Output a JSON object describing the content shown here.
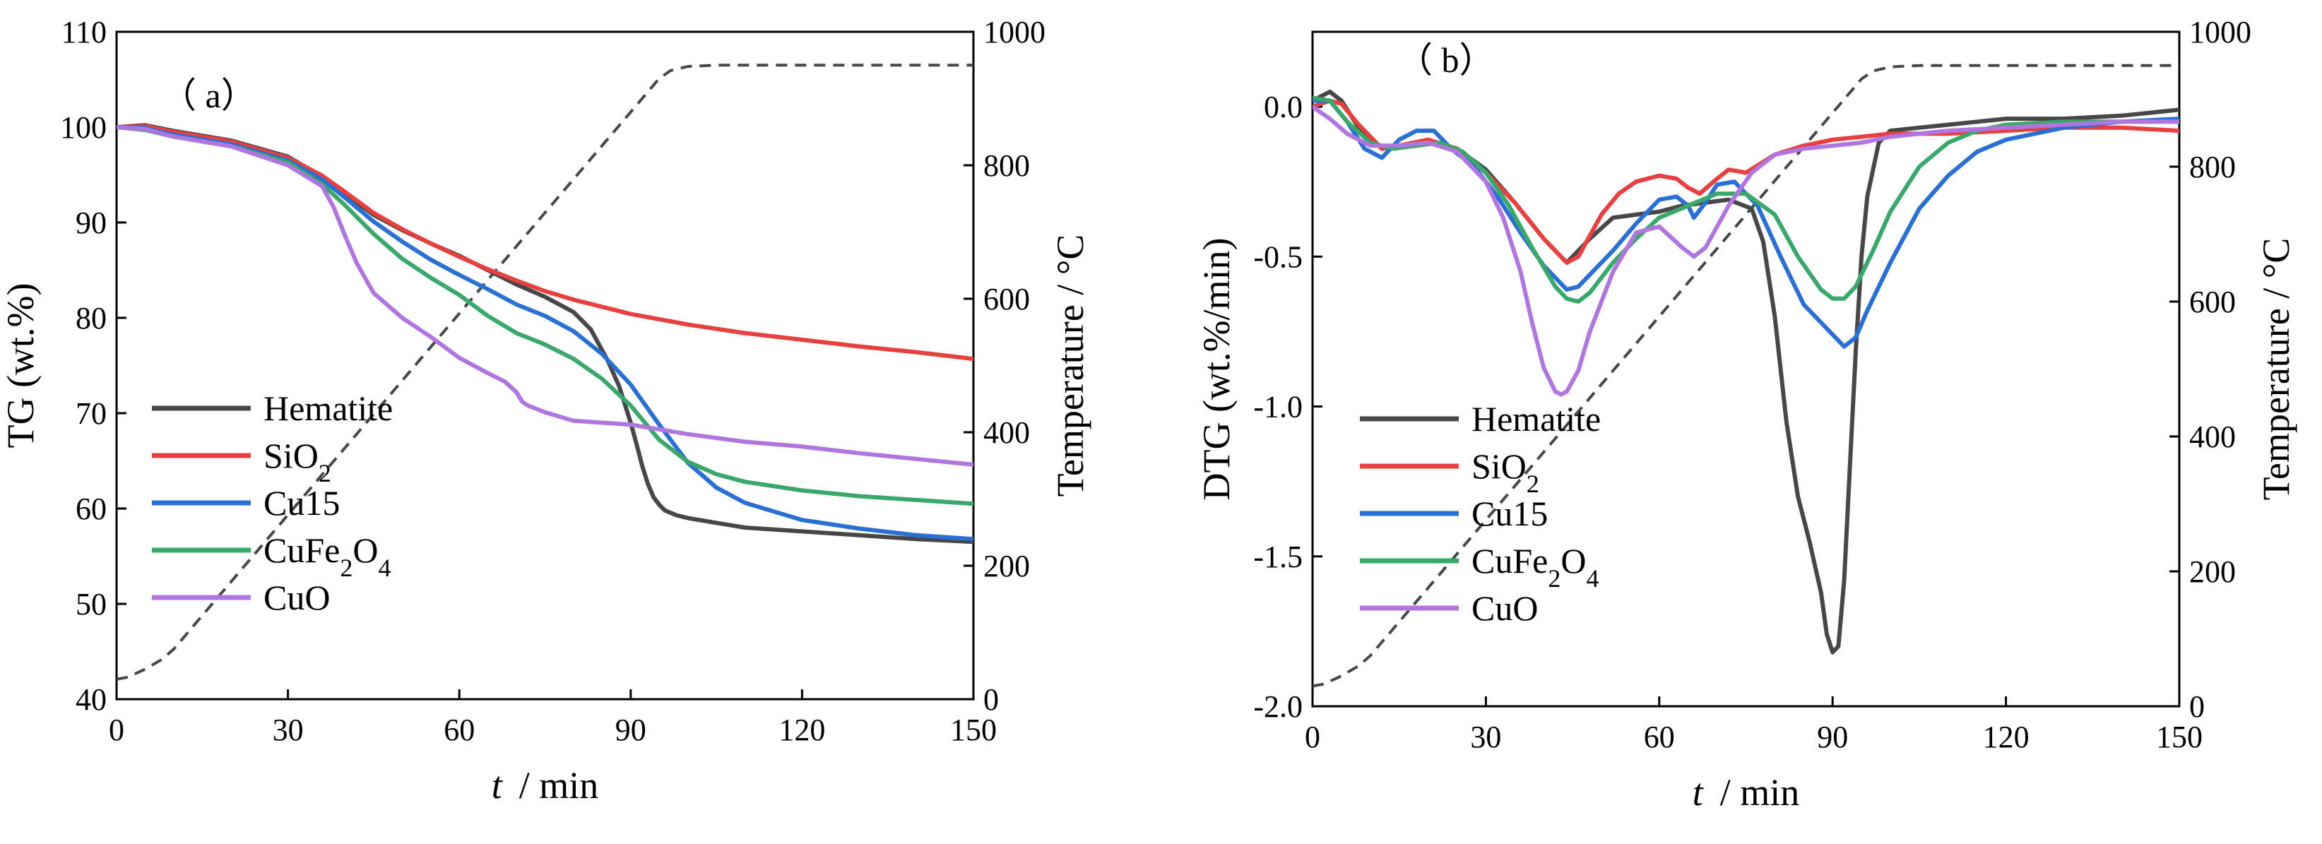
{
  "chart_data": [
    {
      "type": "line",
      "panel_label": "（ a）",
      "xlabel": {
        "var": "t",
        "unit": "/ min"
      },
      "ylabel": "TG (wt.%)",
      "y2label": "Temperature / °C",
      "xlim": [
        0,
        150
      ],
      "ylim": [
        40,
        110
      ],
      "y2lim": [
        0,
        1000
      ],
      "xticks": [
        "0",
        "30",
        "60",
        "90",
        "120",
        "150"
      ],
      "yticks": [
        "40",
        "50",
        "60",
        "70",
        "80",
        "90",
        "100",
        "110"
      ],
      "y2ticks": [
        "0",
        "200",
        "400",
        "600",
        "800",
        "1000"
      ],
      "legend_position": "left",
      "series": [
        {
          "name": "Hematite",
          "legend": [
            "Hematite"
          ],
          "color": "#474747",
          "x": [
            0,
            5,
            10,
            20,
            30,
            36,
            40,
            45,
            50,
            55,
            60,
            65,
            70,
            75,
            80,
            83,
            86,
            88,
            90,
            91,
            92,
            93,
            94,
            95,
            96,
            98,
            100,
            105,
            110,
            120,
            130,
            140,
            150
          ],
          "y": [
            100,
            100.2,
            99.6,
            98.6,
            96.9,
            94.8,
            93,
            90.8,
            89.2,
            87.8,
            86.5,
            85,
            83.5,
            82.2,
            80.6,
            78.8,
            75.5,
            72.8,
            69,
            66.8,
            64.5,
            62.6,
            61.2,
            60.4,
            59.8,
            59.3,
            59,
            58.5,
            58,
            57.6,
            57.2,
            56.8,
            56.5
          ]
        },
        {
          "name": "SiO2",
          "legend": [
            "SiO",
            "2",
            ""
          ],
          "color": "#e83f3f",
          "x": [
            0,
            5,
            10,
            20,
            30,
            36,
            40,
            45,
            50,
            55,
            60,
            65,
            70,
            75,
            80,
            90,
            100,
            110,
            120,
            130,
            140,
            150
          ],
          "y": [
            100,
            100.1,
            99.5,
            98.5,
            96.8,
            94.9,
            93.2,
            91,
            89.3,
            87.8,
            86.4,
            85.1,
            83.9,
            82.8,
            81.9,
            80.4,
            79.3,
            78.4,
            77.7,
            77,
            76.4,
            75.7
          ]
        },
        {
          "name": "Cu15",
          "legend": [
            "Cu15"
          ],
          "color": "#2a6fd3",
          "x": [
            0,
            5,
            10,
            20,
            30,
            36,
            40,
            45,
            50,
            55,
            60,
            65,
            70,
            75,
            80,
            85,
            90,
            95,
            100,
            105,
            110,
            120,
            130,
            140,
            150
          ],
          "y": [
            100,
            99.9,
            99.2,
            98.2,
            96.5,
            94.5,
            92.6,
            90.1,
            88,
            86.1,
            84.5,
            83,
            81.4,
            80.2,
            78.6,
            76.2,
            73,
            68.8,
            64.8,
            62.2,
            60.6,
            58.8,
            57.9,
            57.2,
            56.8
          ]
        },
        {
          "name": "CuFe2O4",
          "legend": [
            "CuFe",
            "2",
            "O",
            "4",
            ""
          ],
          "color": "#3aa86b",
          "x": [
            0,
            5,
            10,
            20,
            30,
            36,
            40,
            45,
            50,
            55,
            60,
            65,
            70,
            75,
            80,
            85,
            90,
            95,
            100,
            105,
            110,
            120,
            130,
            140,
            150
          ],
          "y": [
            100,
            99.7,
            99,
            98,
            96.3,
            94,
            91.8,
            88.8,
            86.2,
            84.2,
            82.4,
            80.2,
            78.4,
            77.2,
            75.7,
            73.6,
            70.8,
            67.2,
            64.9,
            63.6,
            62.8,
            61.9,
            61.3,
            60.9,
            60.5
          ]
        },
        {
          "name": "CuO",
          "legend": [
            "CuO"
          ],
          "color": "#b175e0",
          "x": [
            0,
            5,
            10,
            20,
            30,
            36,
            38,
            40,
            42,
            45,
            50,
            55,
            60,
            65,
            68,
            70,
            71,
            72,
            75,
            80,
            90,
            100,
            110,
            120,
            130,
            140,
            150
          ],
          "y": [
            100,
            99.8,
            99,
            98,
            96,
            93.8,
            91.6,
            88.6,
            85.8,
            82.6,
            80,
            78,
            75.8,
            74.2,
            73.3,
            72.2,
            71.2,
            70.8,
            70.1,
            69.2,
            68.8,
            67.8,
            67,
            66.5,
            65.8,
            65.2,
            64.6
          ]
        }
      ],
      "temperature": {
        "name": "Temperature",
        "style": "dashed",
        "color": "#474747",
        "x": [
          0,
          2,
          5,
          8,
          10,
          95,
          97,
          100,
          105,
          150
        ],
        "y": [
          30,
          33,
          45,
          60,
          75,
          930,
          942,
          948,
          950,
          950
        ]
      }
    },
    {
      "type": "line",
      "panel_label": "（ b）",
      "xlabel": {
        "var": "t",
        "unit": "/ min"
      },
      "ylabel": "DTG (wt.%/min)",
      "y2label": "Temperature / °C",
      "xlim": [
        0,
        150
      ],
      "ylim": [
        -2.0,
        0.25
      ],
      "y2lim": [
        0,
        1000
      ],
      "xticks": [
        "0",
        "30",
        "60",
        "90",
        "120",
        "150"
      ],
      "yticks": [
        "-2.0",
        "-1.5",
        "-1.0",
        "-0.5",
        "0.0"
      ],
      "y2ticks": [
        "0",
        "200",
        "400",
        "600",
        "800",
        "1000"
      ],
      "legend_position": "bottom-left",
      "series": [
        {
          "name": "Hematite",
          "legend": [
            "Hematite"
          ],
          "color": "#474747",
          "x": [
            0,
            3,
            5,
            8,
            12,
            15,
            20,
            25,
            30,
            35,
            40,
            44,
            48,
            52,
            56,
            60,
            64,
            68,
            72,
            76,
            78,
            80,
            82,
            84,
            86,
            88,
            89,
            90,
            91,
            92,
            93,
            94,
            95,
            96,
            98,
            100,
            105,
            110,
            120,
            130,
            140,
            150
          ],
          "y": [
            0.02,
            0.05,
            0.02,
            -0.07,
            -0.14,
            -0.13,
            -0.11,
            -0.14,
            -0.21,
            -0.32,
            -0.44,
            -0.52,
            -0.44,
            -0.37,
            -0.36,
            -0.35,
            -0.33,
            -0.32,
            -0.31,
            -0.34,
            -0.45,
            -0.7,
            -1.05,
            -1.3,
            -1.45,
            -1.62,
            -1.76,
            -1.82,
            -1.8,
            -1.58,
            -1.2,
            -0.82,
            -0.5,
            -0.3,
            -0.12,
            -0.08,
            -0.07,
            -0.06,
            -0.04,
            -0.04,
            -0.03,
            -0.01
          ]
        },
        {
          "name": "SiO2",
          "legend": [
            "SiO",
            "2",
            ""
          ],
          "color": "#e83f3f",
          "x": [
            0,
            3,
            5,
            8,
            12,
            15,
            20,
            25,
            30,
            35,
            40,
            44,
            46,
            48,
            50,
            53,
            56,
            60,
            63,
            65,
            67,
            70,
            72,
            75,
            80,
            85,
            90,
            95,
            100,
            110,
            120,
            130,
            140,
            150
          ],
          "y": [
            0.0,
            0.02,
            0.01,
            -0.06,
            -0.14,
            -0.13,
            -0.11,
            -0.14,
            -0.22,
            -0.32,
            -0.44,
            -0.52,
            -0.5,
            -0.43,
            -0.36,
            -0.29,
            -0.25,
            -0.23,
            -0.24,
            -0.27,
            -0.29,
            -0.24,
            -0.21,
            -0.22,
            -0.16,
            -0.13,
            -0.11,
            -0.1,
            -0.09,
            -0.09,
            -0.08,
            -0.07,
            -0.07,
            -0.08
          ]
        },
        {
          "name": "Cu15",
          "legend": [
            "Cu15"
          ],
          "color": "#2a6fd3",
          "x": [
            0,
            3,
            6,
            9,
            12,
            15,
            18,
            21,
            24,
            28,
            32,
            36,
            40,
            44,
            46,
            48,
            52,
            56,
            60,
            63,
            65,
            66,
            68,
            70,
            73,
            77,
            81,
            85,
            88,
            90,
            92,
            94,
            96,
            100,
            105,
            110,
            115,
            120,
            130,
            140,
            150
          ],
          "y": [
            0.02,
            0.02,
            -0.05,
            -0.14,
            -0.17,
            -0.11,
            -0.08,
            -0.08,
            -0.14,
            -0.2,
            -0.3,
            -0.42,
            -0.53,
            -0.61,
            -0.6,
            -0.56,
            -0.48,
            -0.39,
            -0.31,
            -0.3,
            -0.33,
            -0.37,
            -0.32,
            -0.26,
            -0.25,
            -0.33,
            -0.5,
            -0.66,
            -0.72,
            -0.76,
            -0.8,
            -0.77,
            -0.68,
            -0.52,
            -0.34,
            -0.23,
            -0.15,
            -0.11,
            -0.07,
            -0.05,
            -0.04
          ]
        },
        {
          "name": "CuFe2O4",
          "legend": [
            "CuFe",
            "2",
            "O",
            "4",
            ""
          ],
          "color": "#3aa86b",
          "x": [
            0,
            3,
            6,
            10,
            14,
            18,
            22,
            26,
            30,
            34,
            38,
            42,
            44,
            46,
            48,
            52,
            56,
            60,
            65,
            70,
            75,
            80,
            84,
            88,
            90,
            92,
            94,
            97,
            100,
            105,
            110,
            115,
            120,
            130,
            150
          ],
          "y": [
            0.03,
            0.02,
            -0.05,
            -0.12,
            -0.14,
            -0.13,
            -0.12,
            -0.15,
            -0.22,
            -0.33,
            -0.47,
            -0.6,
            -0.64,
            -0.65,
            -0.62,
            -0.52,
            -0.44,
            -0.37,
            -0.33,
            -0.29,
            -0.29,
            -0.36,
            -0.5,
            -0.61,
            -0.64,
            -0.64,
            -0.6,
            -0.48,
            -0.35,
            -0.2,
            -0.12,
            -0.08,
            -0.06,
            -0.05,
            -0.05
          ]
        },
        {
          "name": "CuO",
          "legend": [
            "CuO"
          ],
          "color": "#b175e0",
          "x": [
            0,
            3,
            6,
            10,
            15,
            20,
            25,
            30,
            33,
            36,
            38,
            40,
            42,
            43,
            44,
            46,
            48,
            52,
            56,
            60,
            64,
            66,
            68,
            72,
            76,
            80,
            85,
            90,
            95,
            100,
            110,
            120,
            130,
            140,
            150
          ],
          "y": [
            0.0,
            -0.04,
            -0.09,
            -0.13,
            -0.13,
            -0.12,
            -0.15,
            -0.25,
            -0.37,
            -0.55,
            -0.72,
            -0.87,
            -0.95,
            -0.96,
            -0.95,
            -0.88,
            -0.75,
            -0.55,
            -0.42,
            -0.4,
            -0.47,
            -0.5,
            -0.47,
            -0.33,
            -0.22,
            -0.16,
            -0.14,
            -0.13,
            -0.12,
            -0.1,
            -0.08,
            -0.07,
            -0.06,
            -0.05,
            -0.05
          ]
        }
      ],
      "temperature": {
        "name": "Temperature",
        "style": "dashed",
        "color": "#474747",
        "x": [
          0,
          2,
          5,
          8,
          10,
          95,
          97,
          100,
          105,
          150
        ],
        "y": [
          30,
          33,
          45,
          60,
          75,
          930,
          942,
          948,
          950,
          950
        ]
      }
    }
  ]
}
